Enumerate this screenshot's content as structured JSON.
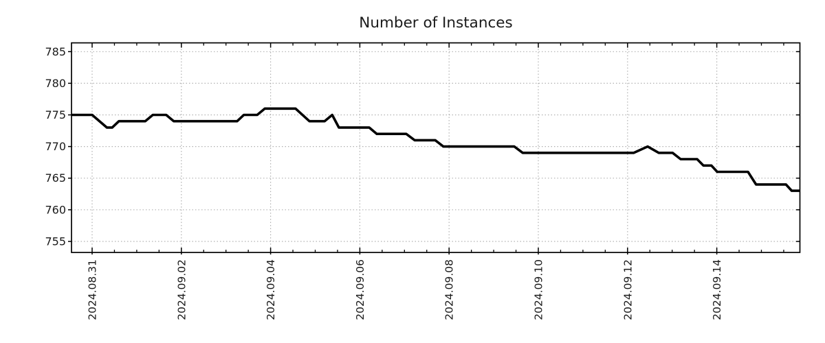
{
  "chart_data": {
    "type": "line",
    "title": "Number of Instances",
    "legend": "none",
    "grid": true,
    "x_axis": {
      "label_type": "dates",
      "tick_labels": [
        "2024.08.31",
        "2024.09.02",
        "2024.09.04",
        "2024.09.06",
        "2024.09.08",
        "2024.09.10",
        "2024.09.12",
        "2024.09.14"
      ],
      "tick_day_offsets": [
        0,
        2,
        4,
        6,
        8,
        10,
        12,
        14
      ],
      "minor_tick_step_days": 0.5,
      "range_days": [
        -0.46,
        15.86
      ]
    },
    "y_axis": {
      "ticks": [
        755,
        760,
        765,
        770,
        775,
        780,
        785
      ],
      "tick_labels": [
        "755",
        "760",
        "765",
        "770",
        "775",
        "780",
        "785"
      ],
      "range": [
        753.3,
        786.4
      ]
    },
    "series": [
      {
        "name": "instances",
        "color": "#000000",
        "points_day_value": [
          [
            -0.46,
            775
          ],
          [
            0.0,
            775
          ],
          [
            0.33,
            773
          ],
          [
            0.45,
            773
          ],
          [
            0.6,
            774
          ],
          [
            1.19,
            774
          ],
          [
            1.36,
            775
          ],
          [
            1.66,
            775
          ],
          [
            1.83,
            774
          ],
          [
            3.25,
            774
          ],
          [
            3.4,
            775
          ],
          [
            3.7,
            775
          ],
          [
            3.87,
            776
          ],
          [
            4.56,
            776
          ],
          [
            4.87,
            774
          ],
          [
            5.21,
            774
          ],
          [
            5.38,
            775
          ],
          [
            5.53,
            773
          ],
          [
            6.21,
            773
          ],
          [
            6.38,
            772
          ],
          [
            7.04,
            772
          ],
          [
            7.23,
            771
          ],
          [
            7.69,
            771
          ],
          [
            7.87,
            770
          ],
          [
            9.46,
            770
          ],
          [
            9.65,
            769
          ],
          [
            12.14,
            769
          ],
          [
            12.45,
            770
          ],
          [
            12.7,
            769
          ],
          [
            13.01,
            769
          ],
          [
            13.19,
            768
          ],
          [
            13.56,
            768
          ],
          [
            13.7,
            767
          ],
          [
            13.88,
            767
          ],
          [
            14.01,
            766
          ],
          [
            14.7,
            766
          ],
          [
            14.88,
            764
          ],
          [
            15.55,
            764
          ],
          [
            15.68,
            763
          ],
          [
            15.86,
            763
          ]
        ]
      }
    ]
  },
  "style": {
    "background_color": "#ffffff",
    "line_color": "#000000",
    "grid_color": "#b0b0b0",
    "axis_color": "#000000",
    "text_color": "#1a1a1a"
  }
}
